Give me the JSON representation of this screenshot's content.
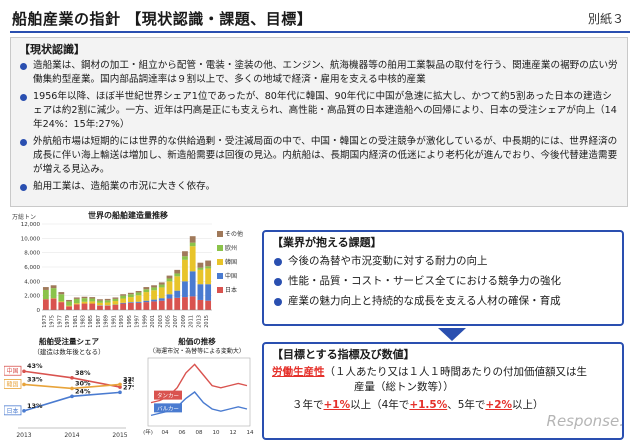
{
  "header": {
    "title": "船舶産業の指針 【現状認識・課題、目標】",
    "appendix_label": "別紙３"
  },
  "status": {
    "heading": "【現状認識】",
    "items": [
      "造船業は、鋼材の加工・組立から配管・電装・塗装の他、エンジン、航海機器等の舶用工業製品の取付を行う、関連産業の裾野の広い労働集約型産業。国内部品調達率は９割以上で、多くの地域で経済・雇用を支える中核的産業",
      "1956年以降、ほぼ半世紀世界シェア1位であったが、80年代に韓国、90年代に中国が急速に拡大し、かつて約5割あった日本の建造シェアは約2割に減少。一方、近年は円高是正にも支えられ、高性能・高品質の日本建造船への回帰により、日本の受注シェアが向上（14年24%：15年:27%）",
      "外航船市場は短期的には世界的な供給過剰・受注減局面の中で、中国・韓国との受注競争が激化しているが、中長期的には、世界経済の成長に伴い海上輸送は増加し、新造船需要は回復の見込。内航船は、長期国内経済の低迷により老朽化が進んでおり、今後代替建造需要が増える見込み。",
      "舶用工業は、造船業の市況に大きく依存。"
    ]
  },
  "issues": {
    "heading": "【業界が抱える課題】",
    "items": [
      "今後の為替や市況変動に対する耐力の向上",
      "性能・品質・コスト・サービス全てにおける競争力の強化",
      "産業の魅力向上と持続的な成長を支える人材の確保・育成"
    ]
  },
  "goals": {
    "heading": "【目標とする指標及び数値】",
    "label": "労働生産性",
    "definition_a": "（１人あたり又は１人１時間あたりの付加価値額又は生",
    "definition_b": "産量（総トン数等））",
    "line3_a": "３年で",
    "line3_b": "+1%",
    "line3_c": "以上（4年で",
    "line3_d": "+1.5%",
    "line3_e": "、5年で",
    "line3_f": "+2%",
    "line3_g": "以上）"
  },
  "watermark": "Response.",
  "chart_data": [
    {
      "type": "bar",
      "stacked": true,
      "title": "世界の船舶建造量推移",
      "unit": "万総トン",
      "ylim": [
        0,
        12000
      ],
      "yticks": [
        "0",
        "2,000",
        "4,000",
        "6,000",
        "8,000",
        "10,000",
        "12,000"
      ],
      "categories": [
        "1973",
        "1975",
        "1977",
        "1979",
        "1981",
        "1983",
        "1985",
        "1987",
        "1989",
        "1991",
        "1993",
        "1995",
        "1997",
        "1999",
        "2001",
        "2003",
        "2005",
        "2007",
        "2009",
        "2011",
        "2013",
        "2015"
      ],
      "series": [
        {
          "name": "日本",
          "color": "#d9534f",
          "values": [
            1500,
            1600,
            1100,
            500,
            800,
            900,
            900,
            600,
            600,
            700,
            900,
            1000,
            1000,
            1100,
            1200,
            1300,
            1600,
            1700,
            1800,
            1900,
            1400,
            1300
          ]
        },
        {
          "name": "中国",
          "color": "#4a7bd0",
          "values": [
            0,
            0,
            0,
            0,
            0,
            0,
            0,
            50,
            50,
            50,
            100,
            100,
            150,
            200,
            250,
            350,
            600,
            1000,
            2200,
            3500,
            2200,
            2300
          ]
        },
        {
          "name": "韓国",
          "color": "#e8c42a",
          "values": [
            0,
            50,
            100,
            100,
            150,
            250,
            300,
            350,
            400,
            500,
            600,
            700,
            900,
            1200,
            1300,
            1500,
            1800,
            2000,
            3000,
            3500,
            2000,
            2200
          ]
        },
        {
          "name": "欧州",
          "color": "#8bc34a",
          "values": [
            1300,
            1400,
            1000,
            600,
            600,
            500,
            400,
            300,
            300,
            300,
            400,
            400,
            400,
            400,
            400,
            400,
            400,
            400,
            500,
            500,
            300,
            300
          ]
        },
        {
          "name": "その他",
          "color": "#a0795a",
          "values": [
            400,
            400,
            300,
            200,
            200,
            200,
            200,
            200,
            200,
            200,
            200,
            200,
            200,
            300,
            300,
            300,
            400,
            500,
            700,
            900,
            700,
            800
          ]
        }
      ]
    },
    {
      "type": "line",
      "title": "船舶受注量シェア",
      "subtitle": "（建造は数年後となる）",
      "categories": [
        "2013",
        "2014",
        "2015"
      ],
      "series": [
        {
          "name": "中国",
          "color": "#d9534f",
          "values": [
            43,
            38,
            31
          ]
        },
        {
          "name": "韓国",
          "color": "#e8a33a",
          "values": [
            33,
            30,
            33
          ]
        },
        {
          "name": "日本",
          "color": "#4a7bd0",
          "values": [
            13,
            24,
            27
          ]
        }
      ],
      "value_labels": [
        "43%",
        "38%",
        "31%",
        "33%",
        "30%",
        "33%",
        "13%",
        "24%",
        "27%"
      ]
    },
    {
      "type": "line",
      "title": "船価の推移",
      "subtitle": "（海運市況・為替等による変動大）",
      "x_ticks": [
        "(年)",
        "04",
        "06",
        "08",
        "10",
        "12",
        "14"
      ],
      "series": [
        {
          "name": "タンカー",
          "color": "#d9534f",
          "values": [
            55,
            60,
            70,
            90,
            125,
            145,
            120,
            95,
            90,
            95,
            100,
            95
          ]
        },
        {
          "name": "バルカー",
          "color": "#4a7bd0",
          "values": [
            25,
            30,
            35,
            45,
            65,
            80,
            55,
            40,
            35,
            40,
            45,
            40
          ]
        }
      ]
    }
  ]
}
